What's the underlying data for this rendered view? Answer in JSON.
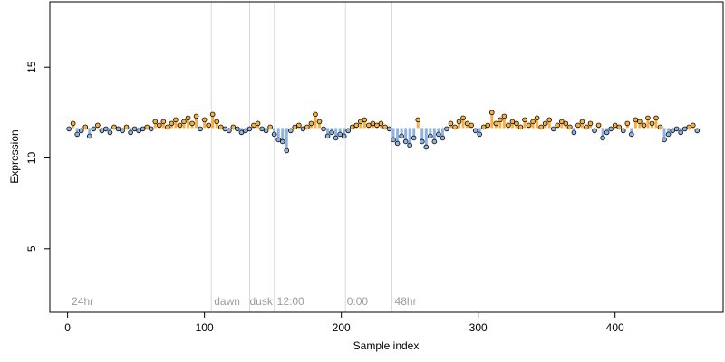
{
  "chart_data": {
    "type": "scatter",
    "xlabel": "Sample index",
    "ylabel": "Expression",
    "xlim": [
      -13,
      479
    ],
    "ylim": [
      1.5,
      18.6
    ],
    "x_ticks": [
      0,
      100,
      200,
      300,
      400
    ],
    "y_ticks": [
      5,
      10,
      15
    ],
    "grid": false,
    "vlines": [
      105,
      133,
      151,
      203,
      237
    ],
    "annotations": [
      {
        "text": "24hr",
        "x": 3,
        "y": 1.9
      },
      {
        "text": "dawn",
        "x": 107,
        "y": 1.9
      },
      {
        "text": "dusk",
        "x": 133,
        "y": 1.9
      },
      {
        "text": "12:00",
        "x": 153,
        "y": 1.9
      },
      {
        "text": "0:00",
        "x": 204,
        "y": 1.9
      },
      {
        "text": "48hr",
        "x": 239,
        "y": 1.9
      }
    ],
    "colors": {
      "above": "#f6b042",
      "below": "#8fb3e0",
      "marker_edge": "#000000",
      "vline": "#d9d9d9",
      "annotation": "#9c9c9c"
    },
    "series": [
      {
        "baseline": 11.65,
        "x": [
          1,
          4,
          7,
          10,
          13,
          16,
          19,
          22,
          25,
          28,
          31,
          34,
          37,
          40,
          43,
          46,
          49,
          52,
          55,
          58,
          61,
          64,
          67,
          70,
          73,
          76,
          79,
          82,
          85,
          88,
          91,
          94,
          97,
          100,
          103,
          106,
          109,
          112,
          115,
          118,
          121,
          124,
          127,
          130,
          133,
          136,
          139,
          142,
          145,
          148,
          151,
          154,
          157,
          160,
          163,
          166,
          169,
          172,
          175,
          178,
          181,
          184,
          187,
          190,
          193,
          196,
          199,
          202,
          205,
          208,
          211,
          214,
          217,
          220,
          223,
          226,
          229,
          232,
          235,
          238,
          241,
          244,
          247,
          250,
          253,
          256,
          259,
          262,
          265,
          268,
          271,
          274,
          277,
          280,
          283,
          286,
          289,
          292,
          295,
          298,
          301,
          304,
          307,
          310,
          313,
          316,
          319,
          322,
          325,
          328,
          331,
          334,
          337,
          340,
          343,
          346,
          349,
          352,
          355,
          358,
          361,
          364,
          367,
          370,
          373,
          376,
          379,
          382,
          385,
          388,
          391,
          394,
          397,
          400,
          403,
          406,
          409,
          412,
          415,
          418,
          421,
          424,
          427,
          430,
          433,
          436,
          439,
          442,
          445,
          448,
          451,
          454,
          457,
          460
        ],
        "y": [
          11.6,
          11.9,
          11.3,
          11.5,
          11.7,
          11.2,
          11.6,
          11.8,
          11.5,
          11.6,
          11.4,
          11.7,
          11.6,
          11.5,
          11.7,
          11.4,
          11.6,
          11.5,
          11.6,
          11.7,
          11.6,
          12.0,
          11.8,
          12.0,
          11.7,
          11.9,
          12.1,
          11.8,
          12.0,
          12.2,
          11.9,
          12.3,
          11.6,
          12.1,
          11.8,
          12.4,
          12.0,
          11.7,
          11.6,
          11.5,
          11.7,
          11.6,
          11.4,
          11.5,
          11.6,
          11.8,
          11.9,
          11.6,
          11.5,
          11.7,
          11.3,
          11.0,
          10.9,
          10.4,
          11.5,
          11.7,
          11.8,
          11.6,
          11.7,
          11.9,
          12.4,
          12.0,
          11.6,
          11.2,
          11.4,
          11.1,
          11.3,
          11.2,
          11.5,
          11.7,
          11.8,
          12.0,
          12.1,
          11.8,
          11.9,
          11.8,
          11.9,
          11.7,
          11.6,
          11.0,
          10.8,
          11.2,
          10.9,
          10.7,
          11.1,
          12.1,
          10.9,
          10.6,
          11.2,
          10.9,
          11.3,
          11.1,
          11.6,
          11.9,
          11.7,
          12.0,
          12.2,
          11.9,
          11.8,
          11.5,
          11.3,
          11.7,
          11.8,
          12.5,
          11.9,
          12.1,
          12.3,
          11.8,
          12.0,
          11.9,
          11.7,
          12.1,
          11.8,
          12.0,
          12.2,
          11.7,
          11.9,
          12.1,
          11.6,
          11.8,
          12.0,
          11.9,
          11.7,
          11.4,
          11.8,
          12.0,
          11.7,
          11.9,
          11.5,
          11.8,
          11.1,
          11.4,
          11.6,
          11.8,
          11.7,
          11.5,
          11.9,
          11.3,
          12.1,
          12.0,
          11.8,
          12.2,
          11.9,
          12.2,
          11.7,
          11.0,
          11.3,
          11.5,
          11.6,
          11.4,
          11.6,
          11.7,
          11.8,
          11.5
        ]
      }
    ]
  }
}
